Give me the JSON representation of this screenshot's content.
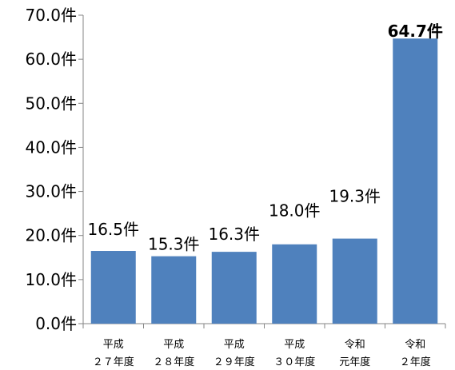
{
  "chart_data": {
    "type": "bar",
    "categories": [
      [
        "平成",
        "２７年度"
      ],
      [
        "平成",
        "２８年度"
      ],
      [
        "平成",
        "２９年度"
      ],
      [
        "平成",
        "３０年度"
      ],
      [
        "令和",
        "元年度"
      ],
      [
        "令和",
        "２年度"
      ]
    ],
    "values": [
      16.5,
      15.3,
      16.3,
      18.0,
      19.3,
      64.7
    ],
    "data_labels": [
      "16.5件",
      "15.3件",
      "16.3件",
      "18.0件",
      "19.3件",
      "64.7件"
    ],
    "highlight_index": 5,
    "ylim": [
      0,
      70
    ],
    "yticks": [
      0,
      10,
      20,
      30,
      40,
      50,
      60,
      70
    ],
    "ytick_labels": [
      "0.0件",
      "10.0件",
      "20.0件",
      "30.0件",
      "40.0件",
      "50.0件",
      "60.0件",
      "70.0件"
    ],
    "bar_color": "#4f81bd",
    "grid": false,
    "legend": "none"
  }
}
